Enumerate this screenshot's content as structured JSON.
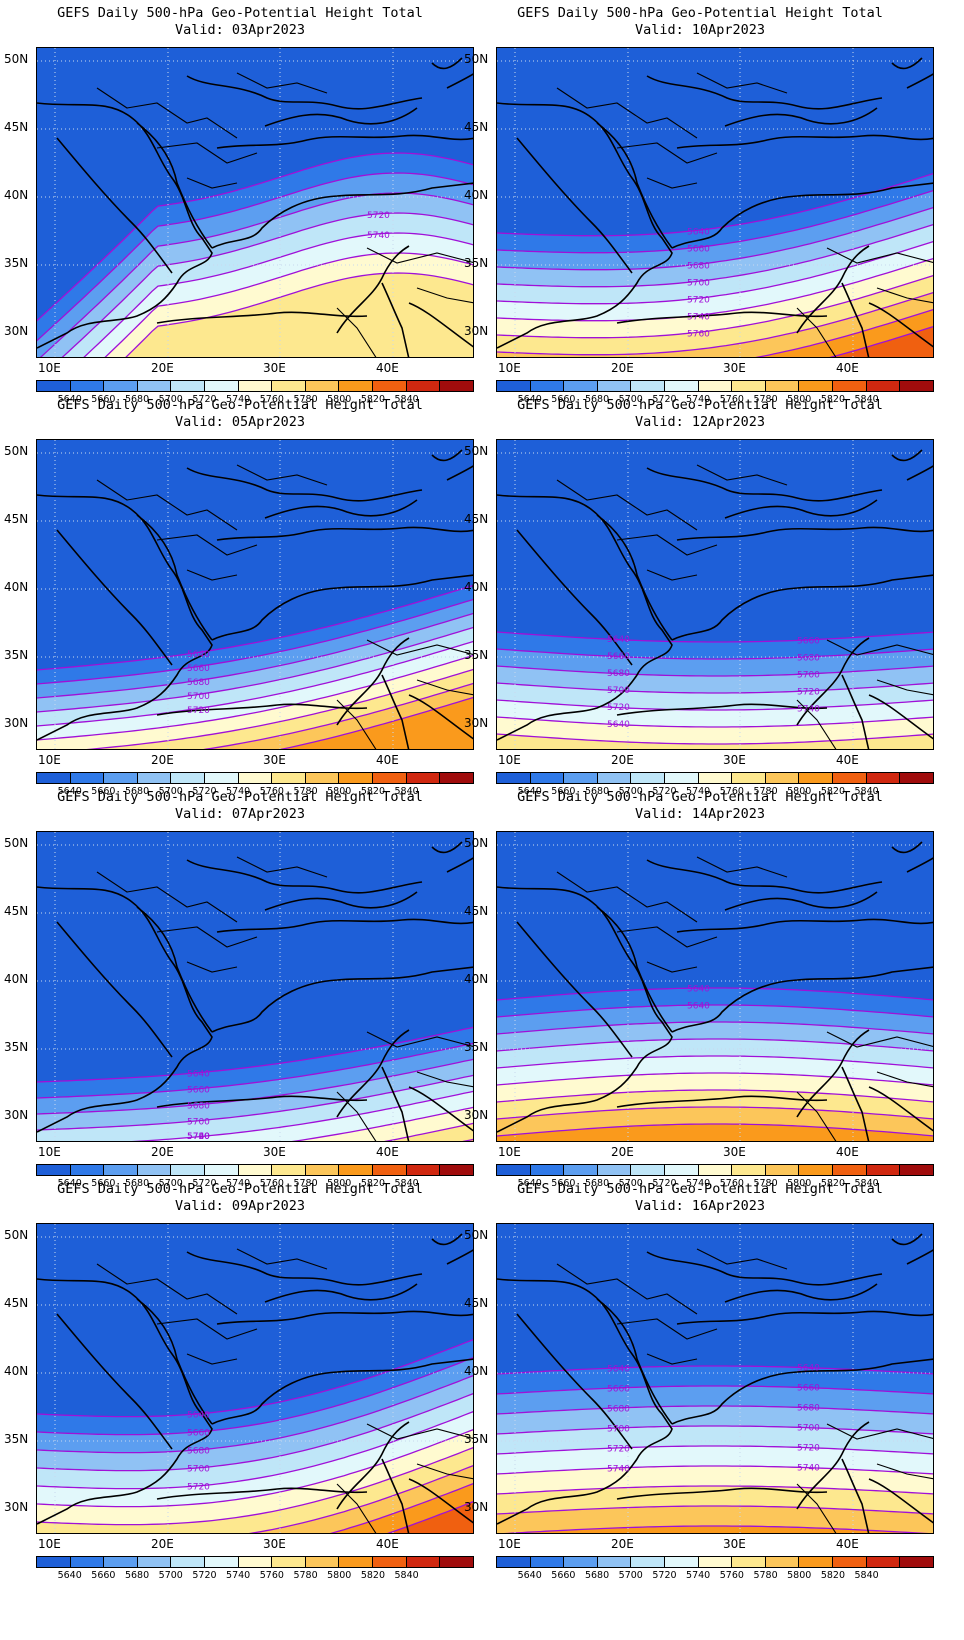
{
  "title": "GEFS Daily 500-hPa Geo-Potential Height Total",
  "lat_labels": [
    "50N",
    "45N",
    "40N",
    "35N",
    "30N"
  ],
  "lon_labels": [
    "10E",
    "20E",
    "30E",
    "40E"
  ],
  "colorbar": {
    "colors": [
      "#1e5fd8",
      "#2f79e8",
      "#5c9ef0",
      "#90c2f4",
      "#bfe6f8",
      "#e2f8fb",
      "#fffad0",
      "#fde88f",
      "#fcc65a",
      "#fa9a1c",
      "#f06010",
      "#d02810",
      "#a00c0c"
    ],
    "labels": [
      "5640",
      "5660",
      "5680",
      "5700",
      "5720",
      "5740",
      "5760",
      "5780",
      "5800",
      "5820",
      "5840"
    ]
  },
  "contour_color": "#a010d8",
  "panels": [
    {
      "valid": "Valid: 03Apr2023",
      "contour_labels": [
        "5720",
        "5740"
      ]
    },
    {
      "valid": "Valid: 10Apr2023",
      "contour_labels": [
        "5640",
        "5660",
        "5680",
        "5700",
        "5720",
        "5740",
        "5760"
      ]
    },
    {
      "valid": "Valid: 05Apr2023",
      "contour_labels": [
        "5640",
        "5660",
        "5680",
        "5700",
        "5720"
      ]
    },
    {
      "valid": "Valid: 12Apr2023",
      "contour_labels": [
        "5640",
        "5660",
        "5680",
        "5700",
        "5720",
        "5640",
        "5660",
        "5680",
        "5700",
        "5720",
        "5740"
      ]
    },
    {
      "valid": "Valid: 07Apr2023",
      "contour_labels": [
        "5640",
        "5660",
        "5680",
        "5700",
        "5720",
        "5740",
        "5760"
      ]
    },
    {
      "valid": "Valid: 14Apr2023",
      "contour_labels": [
        "5640",
        "5640"
      ]
    },
    {
      "valid": "Valid: 09Apr2023",
      "contour_labels": [
        "5640",
        "5660",
        "5680",
        "5700",
        "5720"
      ]
    },
    {
      "valid": "Valid: 16Apr2023",
      "contour_labels": [
        "5640",
        "5660",
        "5680",
        "5700",
        "5720",
        "5740",
        "5640",
        "5660",
        "5680",
        "5700",
        "5720",
        "5740"
      ]
    }
  ]
}
